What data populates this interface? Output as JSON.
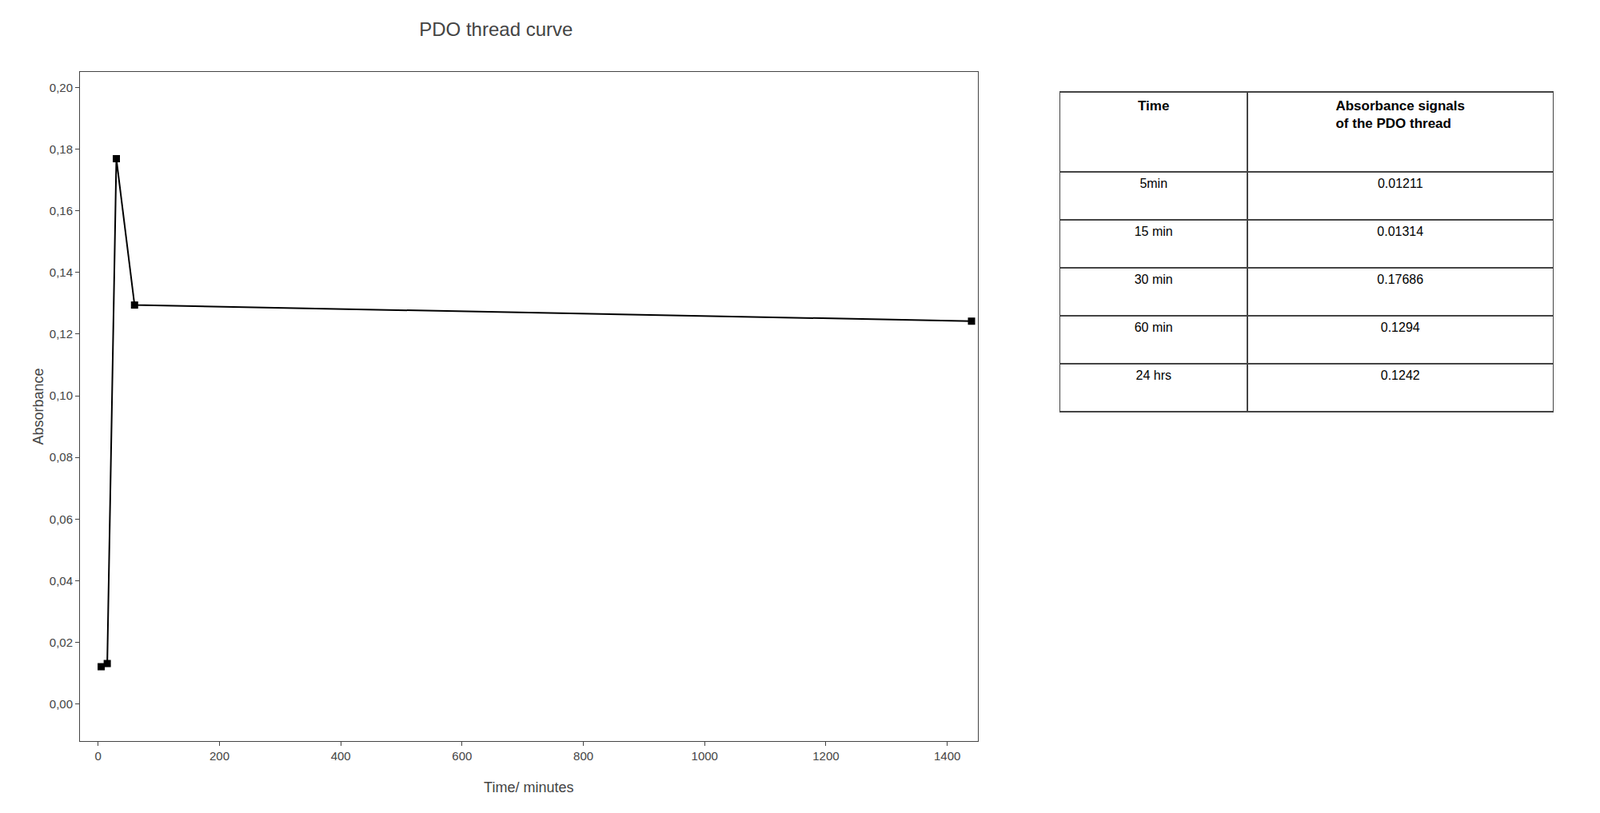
{
  "chart_data": {
    "type": "line",
    "title": "PDO thread curve",
    "xlabel": "Time/ minutes",
    "ylabel": "Absorbance",
    "x": [
      5,
      15,
      30,
      60,
      1440
    ],
    "values": [
      0.01211,
      0.01314,
      0.17686,
      0.1294,
      0.1242
    ],
    "color": "#000000",
    "marker": "square",
    "line_style": "solid",
    "xlim": [
      -30,
      1450
    ],
    "ylim": [
      -0.012,
      0.205
    ],
    "xticks": [
      0,
      200,
      400,
      600,
      800,
      1000,
      1200,
      1400
    ],
    "yticks": [
      {
        "value": 0.0,
        "label": "0,00"
      },
      {
        "value": 0.02,
        "label": "0,02"
      },
      {
        "value": 0.04,
        "label": "0,04"
      },
      {
        "value": 0.06,
        "label": "0,06"
      },
      {
        "value": 0.08,
        "label": "0,08"
      },
      {
        "value": 0.1,
        "label": "0,10"
      },
      {
        "value": 0.12,
        "label": "0,12"
      },
      {
        "value": 0.14,
        "label": "0,14"
      },
      {
        "value": 0.16,
        "label": "0,16"
      },
      {
        "value": 0.18,
        "label": "0,18"
      },
      {
        "value": 0.2,
        "label": "0,20"
      }
    ],
    "grid": false,
    "legend": false,
    "table": {
      "columns": [
        "Time",
        "Absorbance signals\nof the PDO thread"
      ],
      "rows": [
        [
          "5min",
          "0.01211"
        ],
        [
          "15 min",
          "0.01314"
        ],
        [
          "30 min",
          "0.17686"
        ],
        [
          "60 min",
          "0.1294"
        ],
        [
          "24 hrs",
          "0.1242"
        ]
      ]
    }
  }
}
